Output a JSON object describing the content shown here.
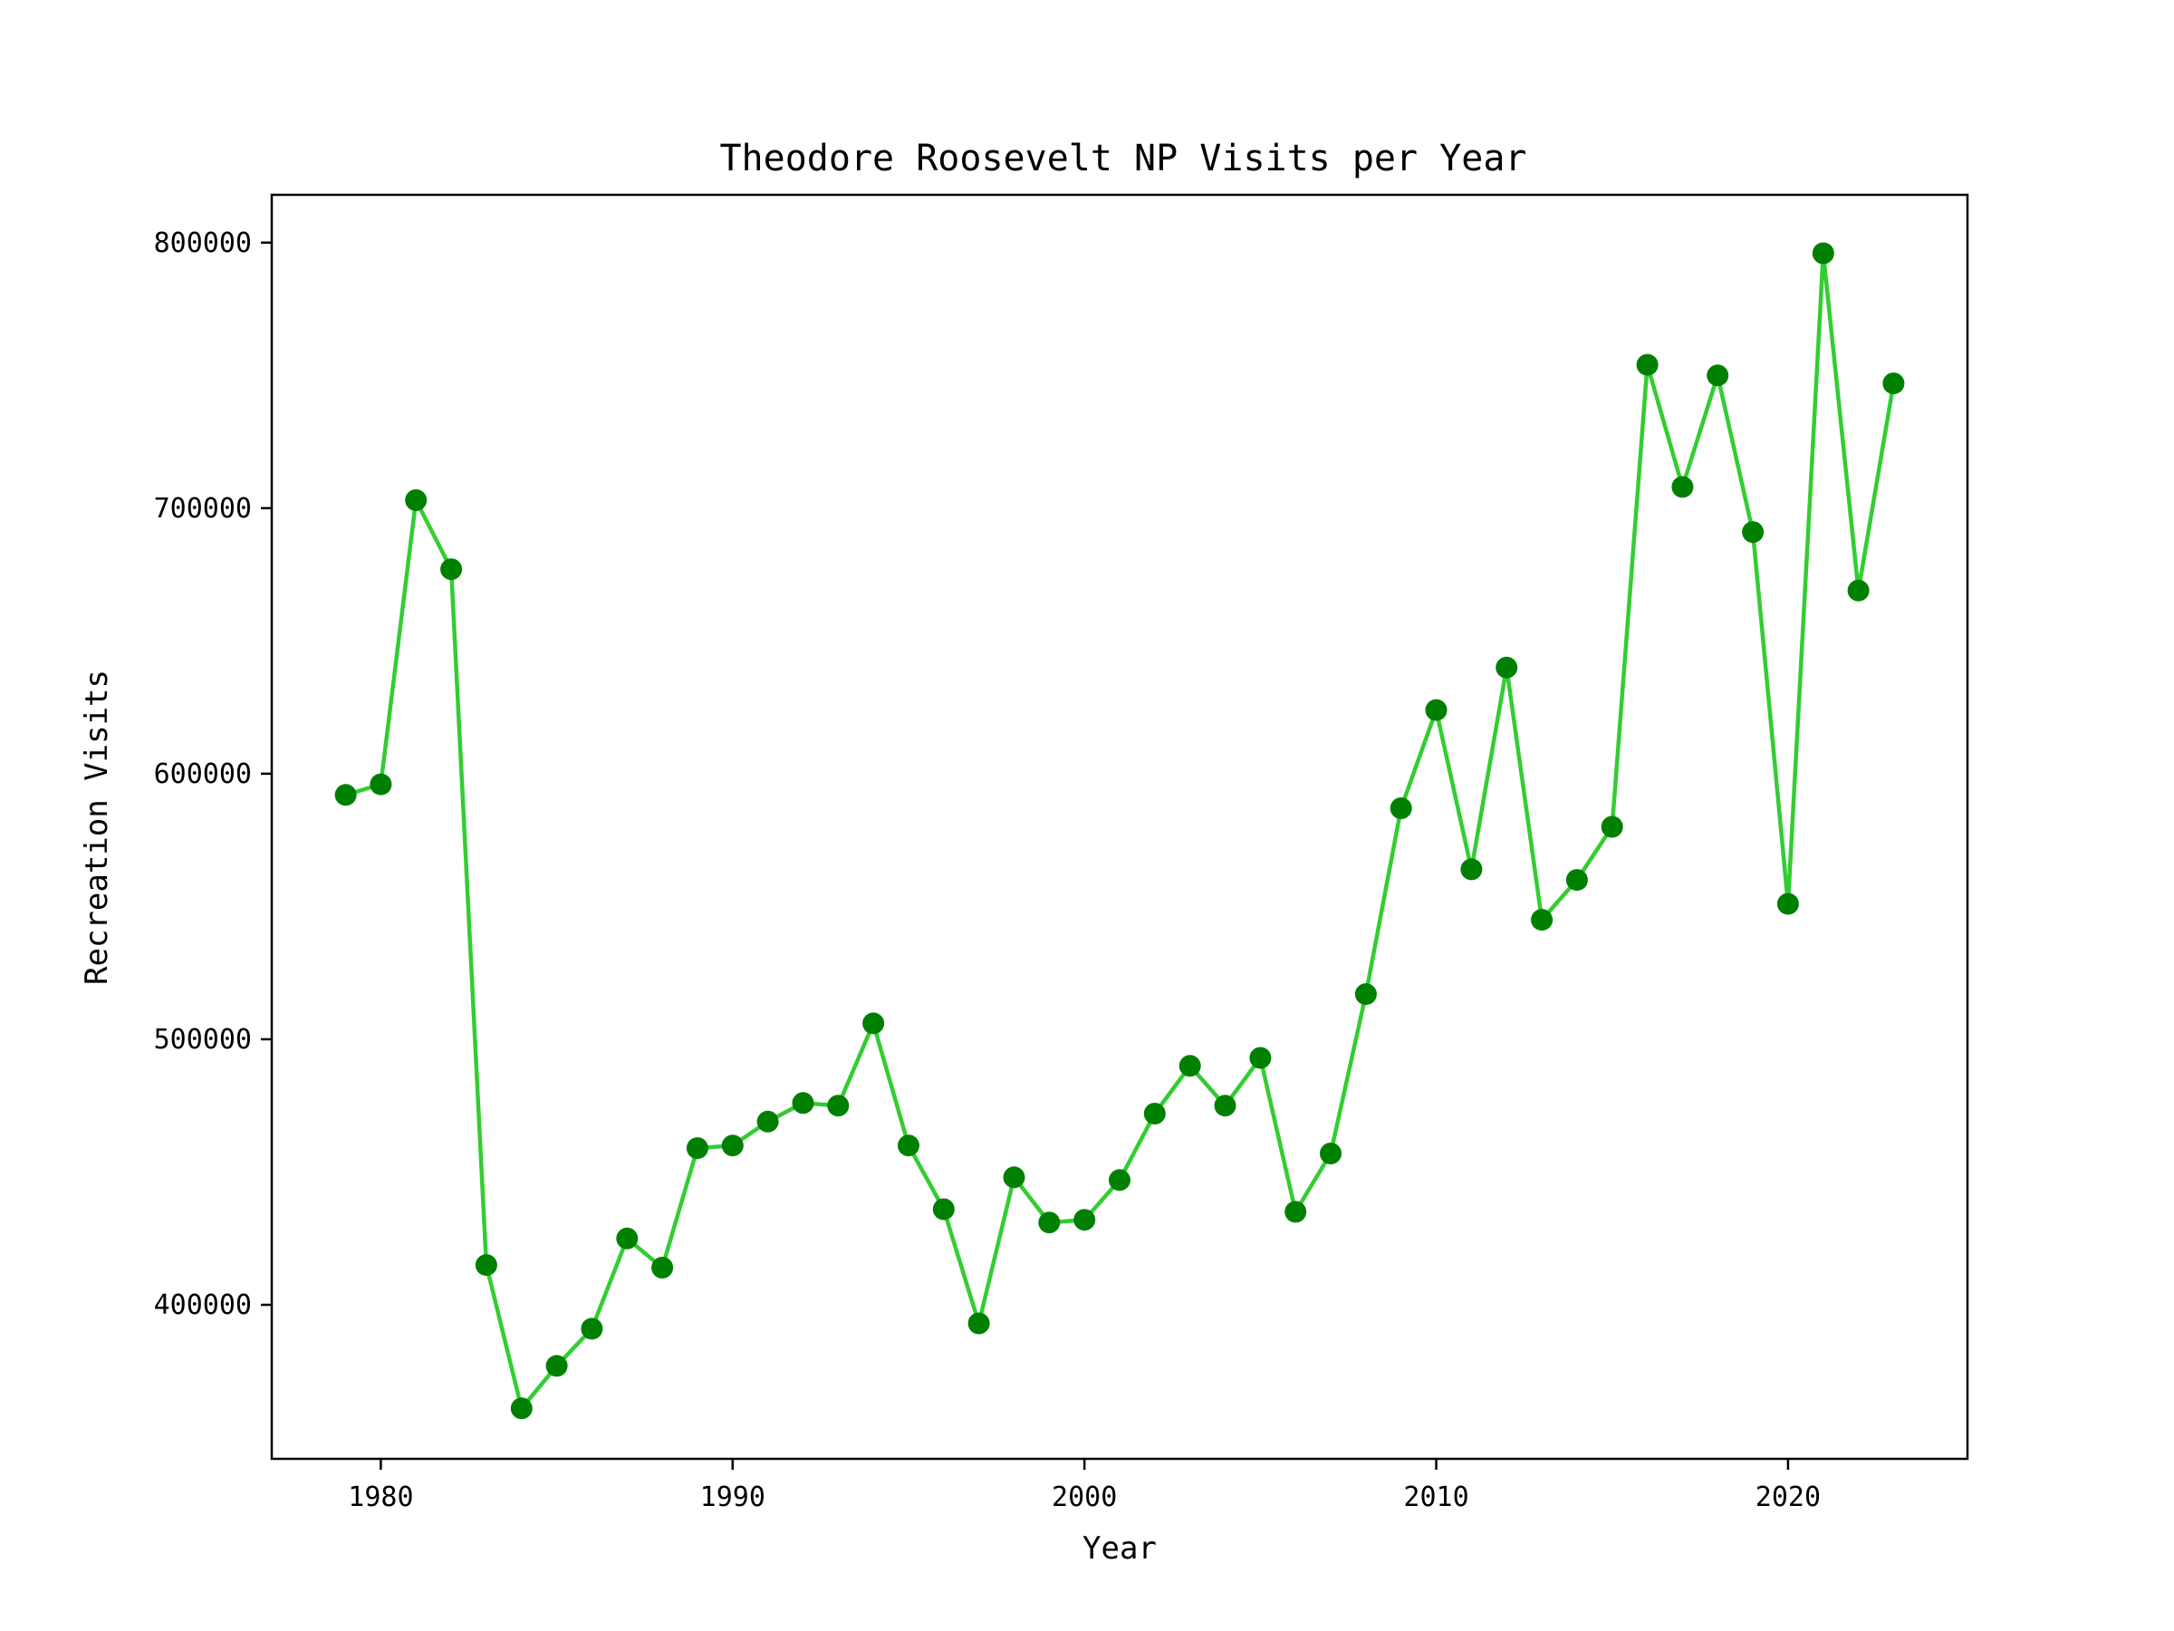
{
  "chart_data": {
    "type": "line",
    "title": "Theodore Roosevelt NP Visits per Year",
    "xlabel": "Year",
    "ylabel": "Recreation Visits",
    "xlim": [
      1976.9,
      2025.1
    ],
    "ylim": [
      342000,
      818000
    ],
    "xticks": [
      1980,
      1990,
      2000,
      2010,
      2020
    ],
    "yticks": [
      400000,
      500000,
      600000,
      700000,
      800000
    ],
    "grid": false,
    "legend": "none",
    "line_color": "#32cd32",
    "marker_color": "#008000",
    "series": [
      {
        "x": [
          1979,
          1980,
          1981,
          1982,
          1983,
          1984,
          1985,
          1986,
          1987,
          1988,
          1989,
          1990,
          1991,
          1992,
          1993,
          1994,
          1995,
          1996,
          1997,
          1998,
          1999,
          2000,
          2001,
          2002,
          2003,
          2004,
          2005,
          2006,
          2007,
          2008,
          2009,
          2010,
          2011,
          2012,
          2013,
          2014,
          2015,
          2016,
          2017,
          2018,
          2019,
          2020,
          2021,
          2022,
          2023
        ],
        "y": [
          592000,
          596000,
          703000,
          677000,
          415000,
          361000,
          377000,
          391000,
          425000,
          414000,
          459000,
          460000,
          469000,
          476000,
          475000,
          506000,
          460000,
          436000,
          393000,
          448000,
          431000,
          432000,
          447000,
          472000,
          490000,
          475000,
          493000,
          435000,
          457000,
          517000,
          587000,
          624000,
          564000,
          640000,
          545000,
          560000,
          580000,
          754000,
          708000,
          750000,
          691000,
          551000,
          796000,
          669000,
          747000
        ]
      }
    ]
  }
}
